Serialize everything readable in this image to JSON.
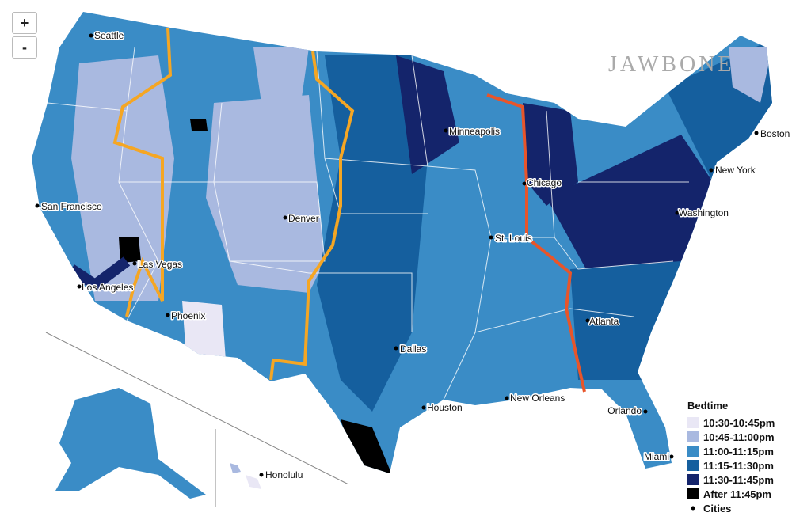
{
  "brand": "JAWBONE",
  "zoom_controls": [
    "+",
    "-"
  ],
  "legend": {
    "title": "Bedtime",
    "items": [
      {
        "label": "10:30-10:45pm",
        "color": "#e9e7f5"
      },
      {
        "label": "10:45-11:00pm",
        "color": "#a9b9e0"
      },
      {
        "label": "11:00-11:15pm",
        "color": "#3a8cc6"
      },
      {
        "label": "11:15-11:30pm",
        "color": "#155f9e"
      },
      {
        "label": "11:30-11:45pm",
        "color": "#14246b"
      },
      {
        "label": "After 11:45pm",
        "color": "#000000"
      }
    ],
    "cities_label": "Cities"
  },
  "cities": [
    "Seattle",
    "San Francisco",
    "Los Angeles",
    "Las Vegas",
    "Phoenix",
    "Denver",
    "Dallas",
    "Houston",
    "Minneapolis",
    "St. Louis",
    "Chicago",
    "New Orleans",
    "Atlanta",
    "Orlando",
    "Miami",
    "Boston",
    "New York",
    "Washington",
    "Honolulu"
  ]
}
